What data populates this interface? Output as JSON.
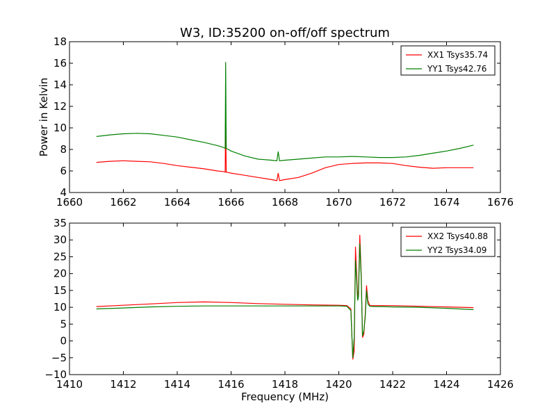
{
  "figure": {
    "title": "W3, ID:35200 on-off/off spectrum"
  },
  "chart_data": [
    {
      "type": "line",
      "xlim": [
        1660,
        1676
      ],
      "ylim": [
        4,
        18
      ],
      "xticks": [
        "1660",
        "1662",
        "1664",
        "1666",
        "1668",
        "1670",
        "1672",
        "1674",
        "1676"
      ],
      "yticks": [
        "4",
        "6",
        "8",
        "10",
        "12",
        "14",
        "16",
        "18"
      ],
      "xlabel": "",
      "ylabel": "Power in Kelvin",
      "grid": false,
      "legend": "top-right",
      "series": [
        {
          "name": "XX1 Tsys35.74",
          "color": "#ff0000",
          "x": [
            1661.0,
            1661.5,
            1662.0,
            1662.5,
            1663.0,
            1663.5,
            1664.0,
            1664.5,
            1665.0,
            1665.5,
            1665.7,
            1665.78,
            1665.8,
            1665.82,
            1665.9,
            1666.0,
            1666.5,
            1667.0,
            1667.5,
            1667.7,
            1667.75,
            1667.8,
            1668.0,
            1668.5,
            1669.0,
            1669.5,
            1670.0,
            1670.5,
            1671.0,
            1671.5,
            1672.0,
            1672.5,
            1673.0,
            1673.5,
            1674.0,
            1674.5,
            1675.0
          ],
          "y": [
            6.8,
            6.9,
            6.95,
            6.9,
            6.85,
            6.7,
            6.5,
            6.35,
            6.2,
            6.0,
            5.95,
            5.9,
            11.5,
            5.9,
            5.85,
            5.8,
            5.6,
            5.4,
            5.2,
            5.1,
            5.8,
            5.1,
            5.2,
            5.4,
            5.8,
            6.3,
            6.6,
            6.7,
            6.75,
            6.75,
            6.7,
            6.5,
            6.35,
            6.25,
            6.3,
            6.3,
            6.3
          ]
        },
        {
          "name": "YY1 Tsys42.76",
          "color": "#008000",
          "x": [
            1661.0,
            1661.5,
            1662.0,
            1662.5,
            1663.0,
            1663.5,
            1664.0,
            1664.5,
            1665.0,
            1665.5,
            1665.7,
            1665.78,
            1665.8,
            1665.82,
            1665.9,
            1666.0,
            1666.5,
            1667.0,
            1667.5,
            1667.7,
            1667.75,
            1667.8,
            1668.0,
            1668.5,
            1669.0,
            1669.5,
            1670.0,
            1670.5,
            1671.0,
            1671.5,
            1672.0,
            1672.5,
            1673.0,
            1673.5,
            1674.0,
            1674.5,
            1675.0
          ],
          "y": [
            9.2,
            9.35,
            9.45,
            9.5,
            9.45,
            9.3,
            9.15,
            8.9,
            8.65,
            8.35,
            8.2,
            8.1,
            16.1,
            8.1,
            8.0,
            7.85,
            7.4,
            7.1,
            7.0,
            6.95,
            7.8,
            6.95,
            7.0,
            7.1,
            7.2,
            7.3,
            7.3,
            7.35,
            7.3,
            7.25,
            7.25,
            7.3,
            7.45,
            7.65,
            7.85,
            8.1,
            8.4
          ]
        }
      ]
    },
    {
      "type": "line",
      "xlim": [
        1410,
        1426
      ],
      "ylim": [
        -10,
        35
      ],
      "xticks": [
        "1410",
        "1412",
        "1414",
        "1416",
        "1418",
        "1420",
        "1422",
        "1424",
        "1426"
      ],
      "yticks": [
        "−10",
        "−5",
        "0",
        "5",
        "10",
        "15",
        "20",
        "25",
        "30",
        "35"
      ],
      "xlabel": "Frequency (MHz)",
      "ylabel": "",
      "grid": false,
      "legend": "top-right",
      "series": [
        {
          "name": "XX2 Tsys40.88",
          "color": "#ff0000",
          "x": [
            1411.0,
            1412.0,
            1413.0,
            1414.0,
            1415.0,
            1416.0,
            1417.0,
            1418.0,
            1419.0,
            1420.0,
            1420.3,
            1420.45,
            1420.52,
            1420.57,
            1420.62,
            1420.66,
            1420.7,
            1420.73,
            1420.78,
            1420.83,
            1420.88,
            1420.93,
            1420.98,
            1421.03,
            1421.08,
            1421.15,
            1421.3,
            1421.6,
            1422.0,
            1423.0,
            1424.0,
            1425.0
          ],
          "y": [
            10.2,
            10.6,
            11.0,
            11.4,
            11.6,
            11.4,
            11.1,
            10.9,
            10.7,
            10.6,
            10.5,
            9.5,
            -5.5,
            -3.0,
            28.0,
            20.0,
            13.0,
            15.0,
            31.5,
            20.0,
            1.0,
            2.0,
            8.0,
            16.5,
            12.0,
            10.5,
            10.5,
            10.5,
            10.5,
            10.3,
            10.1,
            9.9
          ]
        },
        {
          "name": "YY2 Tsys34.09",
          "color": "#008000",
          "x": [
            1411.0,
            1412.0,
            1413.0,
            1414.0,
            1415.0,
            1416.0,
            1417.0,
            1418.0,
            1419.0,
            1420.0,
            1420.3,
            1420.45,
            1420.52,
            1420.57,
            1420.62,
            1420.66,
            1420.7,
            1420.73,
            1420.78,
            1420.83,
            1420.88,
            1420.93,
            1420.98,
            1421.03,
            1421.08,
            1421.15,
            1421.3,
            1421.6,
            1422.0,
            1423.0,
            1424.0,
            1425.0
          ],
          "y": [
            9.5,
            9.8,
            10.1,
            10.3,
            10.4,
            10.4,
            10.4,
            10.4,
            10.4,
            10.4,
            10.3,
            9.0,
            -5.0,
            1.0,
            24.0,
            18.0,
            12.0,
            13.0,
            29.0,
            19.0,
            1.5,
            3.0,
            7.0,
            15.0,
            11.0,
            10.3,
            10.2,
            10.2,
            10.1,
            10.0,
            9.7,
            9.3
          ]
        }
      ]
    }
  ]
}
